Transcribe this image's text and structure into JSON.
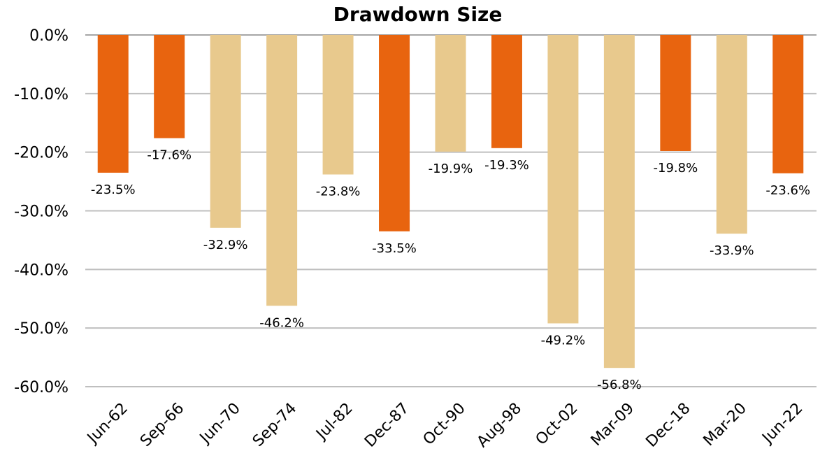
{
  "chart_data": {
    "type": "bar",
    "title": "Drawdown Size",
    "xlabel": "",
    "ylabel": "",
    "ylim": [
      -60,
      0
    ],
    "yticks": [
      0,
      -10,
      -20,
      -30,
      -40,
      -50,
      -60
    ],
    "ytick_labels": [
      "0.0%",
      "-10.0%",
      "-20.0%",
      "-30.0%",
      "-40.0%",
      "-50.0%",
      "-60.0%"
    ],
    "grid": true,
    "categories": [
      "Jun-62",
      "Sep-66",
      "Jun-70",
      "Sep-74",
      "Jul-82",
      "Dec-87",
      "Oct-90",
      "Aug-98",
      "Oct-02",
      "Mar-09",
      "Dec-18",
      "Mar-20",
      "Jun-22"
    ],
    "values": [
      -23.5,
      -17.6,
      -32.9,
      -46.2,
      -23.8,
      -33.5,
      -19.9,
      -19.3,
      -49.2,
      -56.8,
      -19.8,
      -33.9,
      -23.6
    ],
    "data_labels": [
      "-23.5%",
      "-17.6%",
      "-32.9%",
      "-46.2%",
      "-23.8%",
      "-33.5%",
      "-19.9%",
      "-19.3%",
      "-49.2%",
      "-56.8%",
      "-19.8%",
      "-33.9%",
      "-23.6%"
    ],
    "bar_groups": [
      "dark",
      "dark",
      "light",
      "light",
      "light",
      "dark",
      "light",
      "dark",
      "light",
      "light",
      "dark",
      "light",
      "dark"
    ],
    "colors": {
      "dark": "#E8640F",
      "light": "#E8C98D",
      "grid": "#BFBFBF",
      "axis": "#A6A6A6"
    }
  }
}
